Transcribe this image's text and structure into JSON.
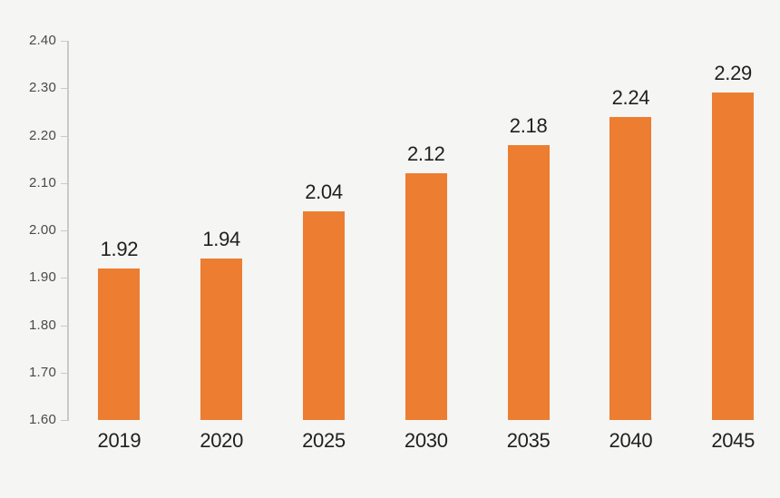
{
  "chart_data": {
    "type": "bar",
    "title": "",
    "xlabel": "",
    "ylabel": "",
    "categories": [
      "2019",
      "2020",
      "2025",
      "2030",
      "2035",
      "2040",
      "2045"
    ],
    "values": [
      1.92,
      1.94,
      2.04,
      2.12,
      2.18,
      2.24,
      2.29
    ],
    "data_labels": [
      "1.92",
      "1.94",
      "2.04",
      "2.12",
      "2.18",
      "2.24",
      "2.29"
    ],
    "ylim": [
      1.6,
      2.4
    ],
    "y_ticks": [
      "1.60",
      "1.70",
      "1.80",
      "1.90",
      "2.00",
      "2.10",
      "2.20",
      "2.30",
      "2.40"
    ],
    "grid": "off",
    "legend": "none",
    "bar_color": "#ED7D31",
    "axis_color": "#C9C9C9",
    "y_tick_label_color": "#4A4A4A",
    "data_label_color": "#1F1F1F",
    "x_tick_label_color": "#1F1F1F",
    "background_color": "#F5F5F3"
  }
}
